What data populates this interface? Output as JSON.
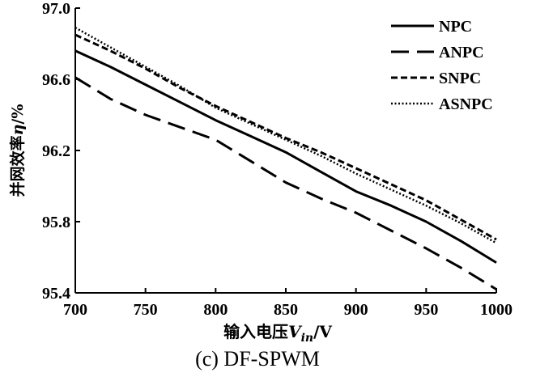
{
  "chart_data": {
    "type": "line",
    "title": "",
    "caption": "(c) DF-SPWM",
    "xlabel": {
      "prefix": "输入电压",
      "var": "V",
      "sub": "in",
      "suffix": "/V"
    },
    "ylabel": {
      "prefix": "并网效率",
      "var": "η",
      "suffix": "/%"
    },
    "xlim": [
      700,
      1000
    ],
    "ylim": [
      95.4,
      97.0
    ],
    "x_ticks": [
      700,
      750,
      800,
      850,
      900,
      950,
      1000
    ],
    "y_ticks": [
      "95.4",
      "95.8",
      "96.2",
      "96.6",
      "97.0"
    ],
    "grid": false,
    "legend_position": "top-right",
    "series": [
      {
        "name": "NPC",
        "style": "solid",
        "x": [
          700,
          725,
          750,
          775,
          800,
          825,
          850,
          875,
          900,
          925,
          950,
          975,
          1000
        ],
        "y": [
          96.76,
          96.67,
          96.57,
          96.47,
          96.37,
          96.28,
          96.19,
          96.08,
          95.97,
          95.89,
          95.8,
          95.69,
          95.57
        ]
      },
      {
        "name": "ANPC",
        "style": "dashed",
        "x": [
          700,
          725,
          750,
          775,
          800,
          825,
          850,
          875,
          900,
          925,
          950,
          975,
          1000
        ],
        "y": [
          96.61,
          96.49,
          96.4,
          96.33,
          96.26,
          96.14,
          96.02,
          95.93,
          95.85,
          95.75,
          95.65,
          95.54,
          95.42
        ]
      },
      {
        "name": "SNPC",
        "style": "short-dashed",
        "x": [
          700,
          725,
          750,
          775,
          800,
          825,
          850,
          875,
          900,
          925,
          950,
          975,
          1000
        ],
        "y": [
          96.85,
          96.76,
          96.66,
          96.55,
          96.45,
          96.36,
          96.27,
          96.19,
          96.1,
          96.01,
          95.92,
          95.81,
          95.7
        ]
      },
      {
        "name": "ASNPC",
        "style": "dotted",
        "x": [
          700,
          725,
          750,
          775,
          800,
          825,
          850,
          875,
          900,
          925,
          950,
          975,
          1000
        ],
        "y": [
          96.89,
          96.78,
          96.67,
          96.56,
          96.44,
          96.35,
          96.26,
          96.17,
          96.07,
          95.98,
          95.89,
          95.79,
          95.68
        ]
      }
    ]
  }
}
